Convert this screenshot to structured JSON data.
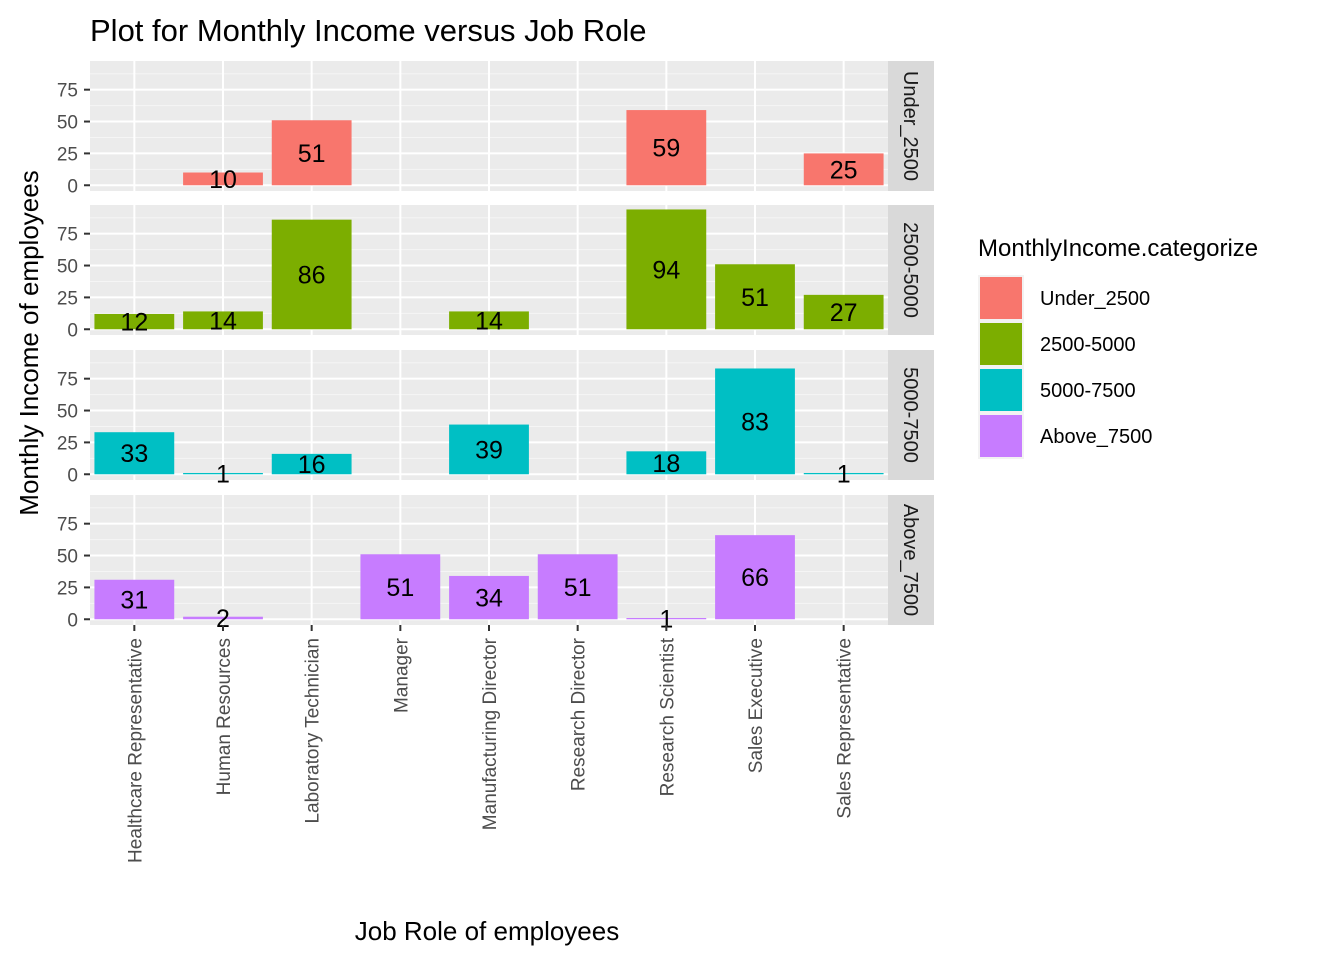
{
  "chart_data": {
    "type": "bar",
    "title": "Plot for Monthly Income versus Job Role",
    "xlabel": "Job Role of employees",
    "ylabel": "Monthly Income of employees",
    "ylim": [
      0,
      100
    ],
    "yticks": [
      0,
      25,
      50,
      75
    ],
    "grid": true,
    "facet": "rows",
    "categories": [
      "Healthcare Representative",
      "Human Resources",
      "Laboratory Technician",
      "Manager",
      "Manufacturing Director",
      "Research Director",
      "Research Scientist",
      "Sales Executive",
      "Sales Representative"
    ],
    "legend": {
      "title": "MonthlyIncome.categorize",
      "position": "right"
    },
    "series": [
      {
        "name": "Under_2500",
        "color": "#F8766D",
        "values": [
          null,
          10,
          51,
          null,
          null,
          null,
          59,
          null,
          25
        ]
      },
      {
        "name": "2500-5000",
        "color": "#7CAE00",
        "values": [
          12,
          14,
          86,
          null,
          14,
          null,
          94,
          51,
          27
        ]
      },
      {
        "name": "5000-7500",
        "color": "#00BFC4",
        "values": [
          33,
          1,
          16,
          null,
          39,
          null,
          18,
          83,
          1
        ]
      },
      {
        "name": "Above_7500",
        "color": "#C77CFF",
        "values": [
          31,
          2,
          null,
          51,
          34,
          51,
          1,
          66,
          null
        ]
      }
    ]
  }
}
